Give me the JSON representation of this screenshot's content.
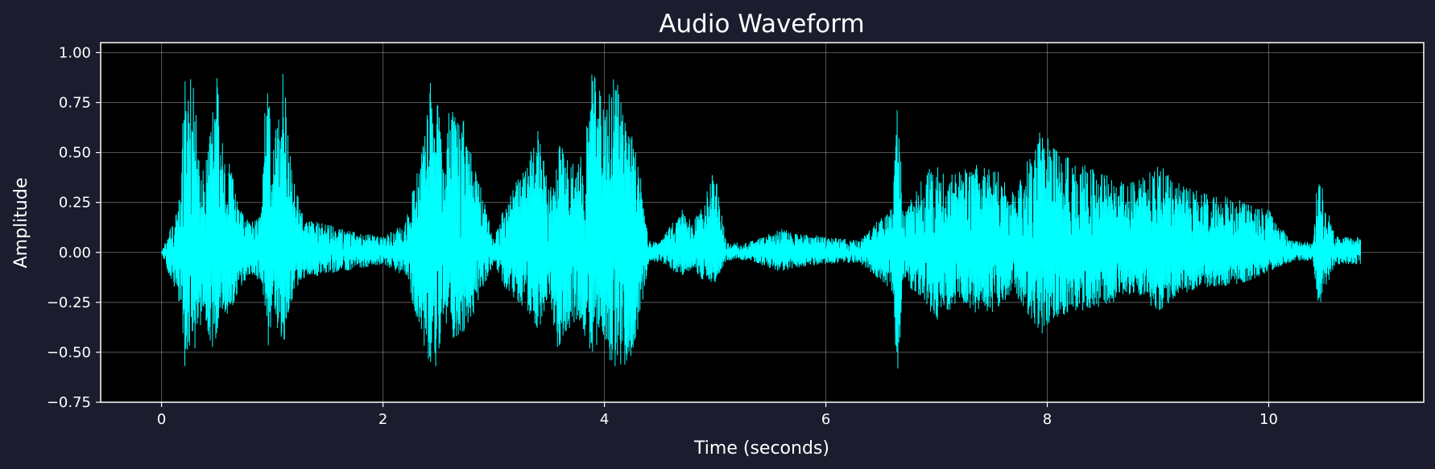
{
  "chart_data": {
    "type": "line",
    "title": "Audio Waveform",
    "xlabel": "Time (seconds)",
    "ylabel": "Amplitude",
    "xlim": [
      -0.55,
      11.4
    ],
    "ylim": [
      -0.75,
      1.05
    ],
    "xticks": [
      0,
      2,
      4,
      6,
      8,
      10
    ],
    "xtick_labels": [
      "0",
      "2",
      "4",
      "6",
      "8",
      "10"
    ],
    "yticks": [
      -0.75,
      -0.5,
      -0.25,
      0.0,
      0.25,
      0.5,
      0.75,
      1.0
    ],
    "ytick_labels": [
      "−0.75",
      "−0.50",
      "−0.25",
      "0.00",
      "0.25",
      "0.50",
      "0.75",
      "1.00"
    ],
    "grid": true,
    "colors": {
      "figure_bg": "#1b1c2e",
      "plot_bg": "#000000",
      "line": "#00ffff",
      "axis": "#ffffff",
      "grid": "#ffffff"
    },
    "series": [
      {
        "x": [
          0.0,
          0.18,
          0.2,
          0.25,
          0.3,
          0.38,
          0.45,
          0.5,
          0.55,
          0.62,
          0.7,
          0.8,
          0.9,
          0.95,
          1.0,
          1.1,
          1.15,
          1.2,
          1.3,
          1.4,
          1.6,
          1.8,
          2.0,
          2.2,
          2.35,
          2.45,
          2.5,
          2.55,
          2.6,
          2.7,
          2.8,
          2.9,
          3.0,
          3.1,
          3.3,
          3.4,
          3.5,
          3.6,
          3.7,
          3.8,
          3.9,
          4.0,
          4.1,
          4.2,
          4.3,
          4.4,
          4.5,
          4.7,
          4.8,
          4.9,
          5.0,
          5.1,
          5.3,
          5.6,
          5.7,
          6.0,
          6.3,
          6.6,
          6.65,
          6.7,
          6.8,
          7.0,
          7.2,
          7.3,
          7.5,
          7.7,
          7.95,
          8.1,
          8.3,
          8.6,
          8.8,
          9.0,
          9.2,
          9.4,
          9.6,
          9.8,
          10.0,
          10.2,
          10.4,
          10.45,
          10.5,
          10.6,
          10.83
        ],
        "y_max": [
          0.0,
          0.3,
          0.92,
          0.93,
          0.8,
          0.4,
          0.72,
          0.88,
          0.55,
          0.44,
          0.25,
          0.15,
          0.2,
          0.97,
          0.5,
          0.94,
          0.6,
          0.35,
          0.15,
          0.17,
          0.12,
          0.1,
          0.08,
          0.15,
          0.5,
          0.95,
          0.85,
          0.4,
          0.75,
          0.72,
          0.5,
          0.3,
          0.06,
          0.25,
          0.45,
          0.64,
          0.3,
          0.55,
          0.44,
          0.5,
          0.97,
          0.72,
          0.92,
          0.66,
          0.5,
          0.06,
          0.06,
          0.22,
          0.15,
          0.27,
          0.43,
          0.05,
          0.05,
          0.12,
          0.1,
          0.08,
          0.06,
          0.25,
          0.78,
          0.2,
          0.3,
          0.5,
          0.4,
          0.45,
          0.45,
          0.3,
          0.63,
          0.5,
          0.45,
          0.38,
          0.35,
          0.45,
          0.35,
          0.3,
          0.29,
          0.25,
          0.22,
          0.06,
          0.05,
          0.48,
          0.28,
          0.08,
          0.08
        ],
        "y_min": [
          0.0,
          -0.3,
          -0.58,
          -0.6,
          -0.5,
          -0.3,
          -0.5,
          -0.48,
          -0.35,
          -0.3,
          -0.18,
          -0.12,
          -0.15,
          -0.56,
          -0.3,
          -0.48,
          -0.3,
          -0.2,
          -0.12,
          -0.12,
          -0.1,
          -0.08,
          -0.06,
          -0.12,
          -0.45,
          -0.6,
          -0.55,
          -0.3,
          -0.45,
          -0.42,
          -0.35,
          -0.2,
          -0.05,
          -0.18,
          -0.3,
          -0.4,
          -0.25,
          -0.55,
          -0.35,
          -0.45,
          -0.55,
          -0.5,
          -0.58,
          -0.62,
          -0.4,
          -0.05,
          -0.05,
          -0.12,
          -0.08,
          -0.15,
          -0.15,
          -0.04,
          -0.04,
          -0.1,
          -0.08,
          -0.06,
          -0.05,
          -0.2,
          -0.67,
          -0.15,
          -0.2,
          -0.35,
          -0.25,
          -0.3,
          -0.3,
          -0.2,
          -0.42,
          -0.32,
          -0.3,
          -0.25,
          -0.2,
          -0.3,
          -0.22,
          -0.18,
          -0.17,
          -0.15,
          -0.1,
          -0.05,
          -0.04,
          -0.28,
          -0.2,
          -0.06,
          -0.06
        ]
      }
    ]
  }
}
